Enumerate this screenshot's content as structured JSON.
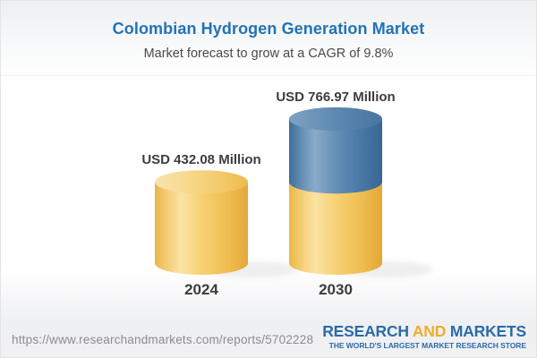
{
  "header": {
    "title": "Colombian Hydrogen Generation Market",
    "subtitle": "Market forecast to grow at a CAGR of 9.8%"
  },
  "chart_data": {
    "type": "bar",
    "variant": "3d-cylinder",
    "title": "Colombian Hydrogen Generation Market",
    "subtitle": "Market forecast to grow at a CAGR of 9.8%",
    "categories": [
      "2024",
      "2030"
    ],
    "values": [
      432.08,
      766.97
    ],
    "value_labels": [
      "USD 432.08 Million",
      "USD 766.97 Million"
    ],
    "unit": "USD Million",
    "ylim": [
      0,
      800
    ],
    "grid": false,
    "legend": false,
    "colors": {
      "base_segment_gold": "#f5c964",
      "growth_segment_blue": "#4d7dab"
    }
  },
  "footer": {
    "url": "https://www.researchandmarkets.com/reports/5702228",
    "logo": {
      "word1": "RESEARCH",
      "word2": "AND",
      "word3": "MARKETS",
      "tagline": "THE WORLD'S LARGEST MARKET RESEARCH STORE"
    }
  },
  "colors": {
    "title_blue": "#2173b6",
    "text_dark": "#3d3d3d",
    "url_gray": "#8c8c8c",
    "logo_blue": "#2b6ba7",
    "logo_orange": "#f0ac2e",
    "header_background": "#edeff1",
    "footer_background": "#f0f1f3"
  }
}
